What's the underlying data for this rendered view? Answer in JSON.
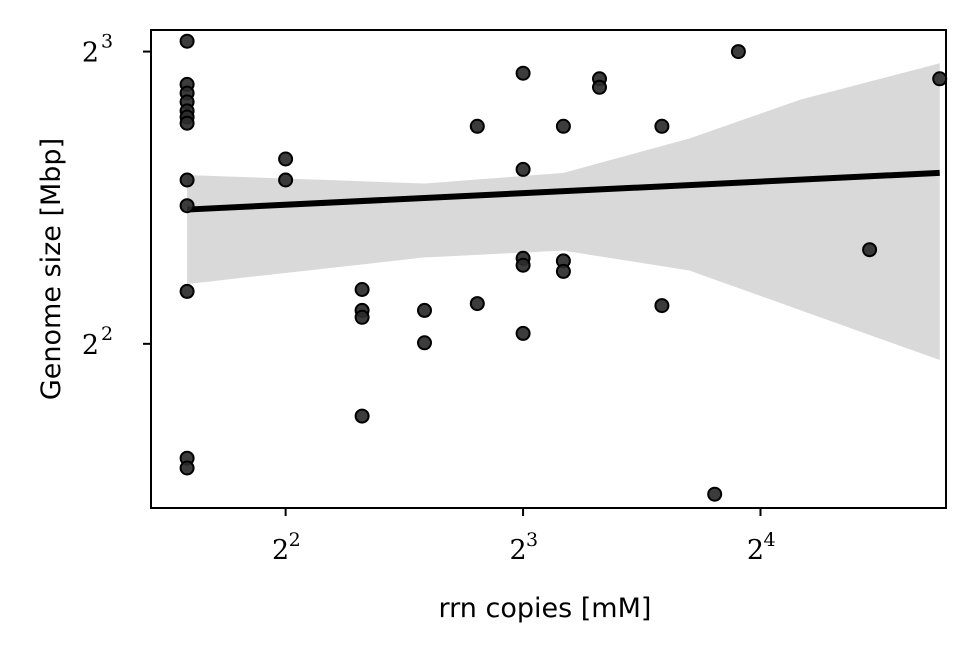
{
  "chart_data": {
    "type": "scatter",
    "title": "",
    "xlabel": "rrn copies [mM]",
    "ylabel": "Genome size [Mbp]",
    "xscale": "log2",
    "yscale": "log2",
    "xlim": [
      2.7,
      27.5
    ],
    "ylim": [
      2.71,
      8.42
    ],
    "xticks": [
      {
        "value": 4,
        "base": "2",
        "exp": "2"
      },
      {
        "value": 8,
        "base": "2",
        "exp": "3"
      },
      {
        "value": 16,
        "base": "2",
        "exp": "4"
      }
    ],
    "yticks": [
      {
        "value": 4,
        "base": "2",
        "exp": "2"
      },
      {
        "value": 8,
        "base": "2",
        "exp": "3"
      }
    ],
    "grid": false,
    "legend": "none",
    "colors": {
      "points": "#1a1a1a",
      "fit_line": "#000000",
      "confidence_band": "#d9d9d9"
    },
    "points": [
      {
        "x": 3.0,
        "y": 8.2
      },
      {
        "x": 3.0,
        "y": 7.4
      },
      {
        "x": 3.0,
        "y": 7.25
      },
      {
        "x": 3.0,
        "y": 7.1
      },
      {
        "x": 3.0,
        "y": 6.95
      },
      {
        "x": 3.0,
        "y": 6.85
      },
      {
        "x": 3.0,
        "y": 6.75
      },
      {
        "x": 3.0,
        "y": 5.9
      },
      {
        "x": 3.0,
        "y": 5.55
      },
      {
        "x": 3.0,
        "y": 4.53
      },
      {
        "x": 3.0,
        "y": 3.05
      },
      {
        "x": 3.0,
        "y": 2.98
      },
      {
        "x": 4.0,
        "y": 6.2
      },
      {
        "x": 4.0,
        "y": 5.9
      },
      {
        "x": 5.0,
        "y": 4.55
      },
      {
        "x": 5.0,
        "y": 4.33
      },
      {
        "x": 5.0,
        "y": 4.26
      },
      {
        "x": 5.0,
        "y": 3.37
      },
      {
        "x": 6.0,
        "y": 4.33
      },
      {
        "x": 6.0,
        "y": 4.01
      },
      {
        "x": 7.0,
        "y": 6.7
      },
      {
        "x": 7.0,
        "y": 4.4
      },
      {
        "x": 8.0,
        "y": 7.6
      },
      {
        "x": 8.0,
        "y": 6.05
      },
      {
        "x": 8.0,
        "y": 4.9
      },
      {
        "x": 8.0,
        "y": 4.82
      },
      {
        "x": 8.0,
        "y": 4.1
      },
      {
        "x": 9.0,
        "y": 6.7
      },
      {
        "x": 9.0,
        "y": 4.87
      },
      {
        "x": 9.0,
        "y": 4.75
      },
      {
        "x": 10.0,
        "y": 7.5
      },
      {
        "x": 10.0,
        "y": 7.35
      },
      {
        "x": 12.0,
        "y": 6.7
      },
      {
        "x": 12.0,
        "y": 4.38
      },
      {
        "x": 14.0,
        "y": 2.8
      },
      {
        "x": 15.0,
        "y": 8.0
      },
      {
        "x": 22.0,
        "y": 5.0
      },
      {
        "x": 27.0,
        "y": 7.5
      }
    ],
    "fit": {
      "x": [
        3.0,
        27.0
      ],
      "y": [
        5.5,
        6.0
      ]
    },
    "band": [
      {
        "x": 3.0,
        "lower": 4.61,
        "upper": 5.97
      },
      {
        "x": 6.0,
        "lower": 4.91,
        "upper": 5.85
      },
      {
        "x": 9.0,
        "lower": 4.99,
        "upper": 6.0
      },
      {
        "x": 13.0,
        "lower": 4.76,
        "upper": 6.51
      },
      {
        "x": 18.0,
        "lower": 4.33,
        "upper": 7.14
      },
      {
        "x": 27.0,
        "lower": 3.85,
        "upper": 7.78
      }
    ]
  }
}
